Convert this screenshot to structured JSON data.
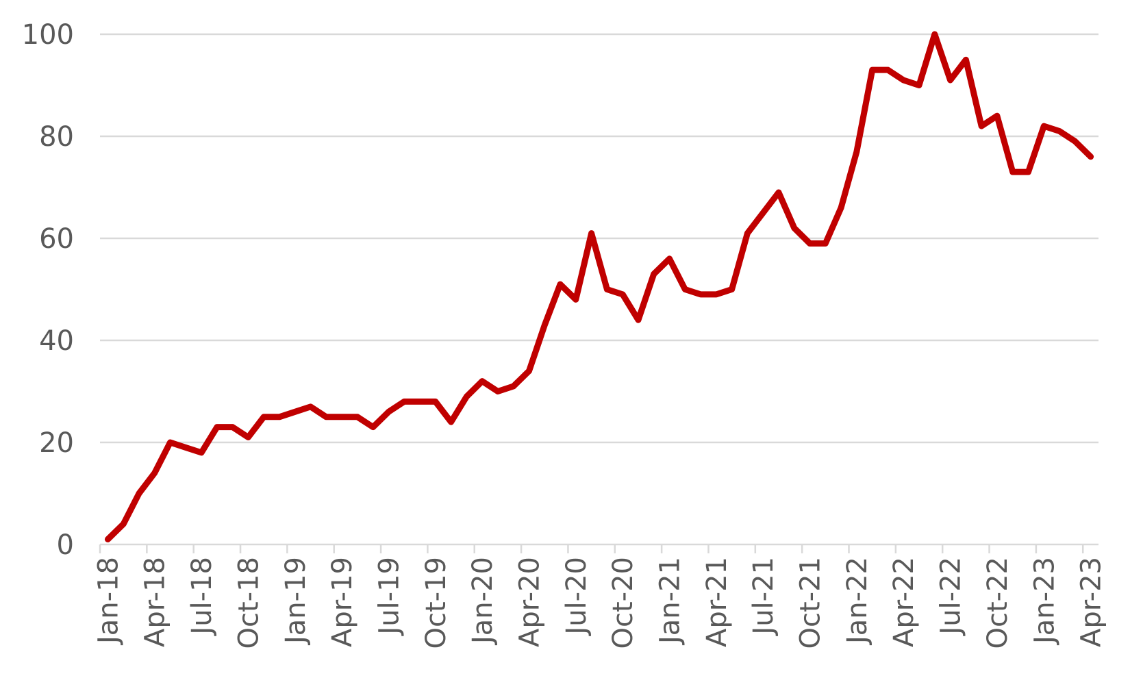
{
  "chart_data": {
    "type": "line",
    "title": "",
    "xlabel": "",
    "ylabel": "",
    "ylim": [
      0,
      100
    ],
    "yticks": [
      0,
      20,
      40,
      60,
      80,
      100
    ],
    "grid": true,
    "legend": "none",
    "x_tick_labels": [
      "Jan-18",
      "Apr-18",
      "Jul-18",
      "Oct-18",
      "Jan-19",
      "Apr-19",
      "Jul-19",
      "Oct-19",
      "Jan-20",
      "Apr-20",
      "Jul-20",
      "Oct-20",
      "Jan-21",
      "Apr-21",
      "Jul-21",
      "Oct-21",
      "Jan-22",
      "Apr-22",
      "Jul-22",
      "Oct-22",
      "Jan-23",
      "Apr-23"
    ],
    "x": [
      "Jan-18",
      "Feb-18",
      "Mar-18",
      "Apr-18",
      "May-18",
      "Jun-18",
      "Jul-18",
      "Aug-18",
      "Sep-18",
      "Oct-18",
      "Nov-18",
      "Dec-18",
      "Jan-19",
      "Feb-19",
      "Mar-19",
      "Apr-19",
      "May-19",
      "Jun-19",
      "Jul-19",
      "Aug-19",
      "Sep-19",
      "Oct-19",
      "Nov-19",
      "Dec-19",
      "Jan-20",
      "Feb-20",
      "Mar-20",
      "Apr-20",
      "May-20",
      "Jun-20",
      "Jul-20",
      "Aug-20",
      "Sep-20",
      "Oct-20",
      "Nov-20",
      "Dec-20",
      "Jan-21",
      "Feb-21",
      "Mar-21",
      "Apr-21",
      "May-21",
      "Jun-21",
      "Jul-21",
      "Aug-21",
      "Sep-21",
      "Oct-21",
      "Nov-21",
      "Dec-21",
      "Jan-22",
      "Feb-22",
      "Mar-22",
      "Apr-22",
      "May-22",
      "Jun-22",
      "Jul-22",
      "Aug-22",
      "Sep-22",
      "Oct-22",
      "Nov-22",
      "Dec-22",
      "Jan-23",
      "Feb-23",
      "Mar-23",
      "Apr-23"
    ],
    "series": [
      {
        "color": "#c00000",
        "values": [
          1,
          4,
          10,
          14,
          20,
          19,
          18,
          23,
          23,
          21,
          25,
          25,
          26,
          27,
          25,
          25,
          25,
          23,
          26,
          28,
          28,
          28,
          24,
          29,
          32,
          30,
          31,
          34,
          43,
          51,
          48,
          61,
          50,
          49,
          44,
          53,
          56,
          50,
          49,
          49,
          50,
          61,
          65,
          69,
          62,
          59,
          59,
          66,
          77,
          93,
          93,
          91,
          90,
          100,
          91,
          95,
          82,
          84,
          73,
          73,
          82,
          81,
          79,
          76
        ]
      }
    ]
  }
}
